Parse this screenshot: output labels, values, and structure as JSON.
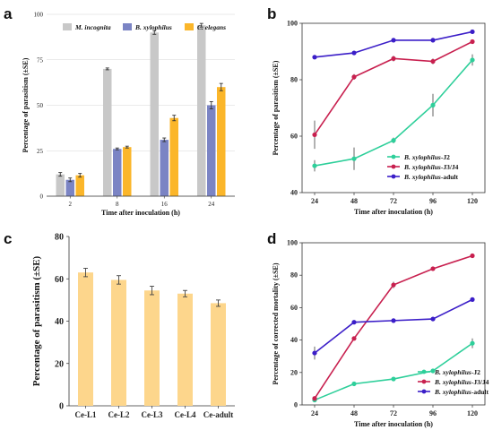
{
  "chart_data": [
    {
      "panel": "a",
      "type": "bar",
      "xlabel": "Time after inoculation (h)",
      "ylabel": "Percentage of parasitism (±SE)",
      "categories": [
        "2",
        "8",
        "16",
        "24"
      ],
      "ylim": [
        0,
        100
      ],
      "yticks": [
        "0",
        "25",
        "50",
        "75",
        "100"
      ],
      "grid": true,
      "legend_position": "top",
      "series": [
        {
          "name": "M. incognita",
          "color": "#c8c8c8",
          "values": [
            12,
            70,
            90,
            94
          ],
          "errors": [
            1,
            0.5,
            1,
            1
          ]
        },
        {
          "name": "B. xylophilus",
          "color": "#7b84c4",
          "values": [
            9,
            26,
            31,
            50
          ],
          "errors": [
            1,
            0.5,
            1,
            2
          ]
        },
        {
          "name": "C. elegans",
          "color": "#fbb62a",
          "values": [
            11.5,
            27,
            43,
            60
          ],
          "errors": [
            1,
            0.5,
            1.5,
            2
          ]
        }
      ]
    },
    {
      "panel": "b",
      "type": "line",
      "xlabel": "Time after inoculation (h)",
      "ylabel": "Percentage of parasitism (±SE)",
      "x": [
        "24",
        "48",
        "72",
        "96",
        "120"
      ],
      "ylim": [
        40,
        100
      ],
      "yticks": [
        "40",
        "60",
        "80",
        "100"
      ],
      "legend_position": "bottom-right",
      "series": [
        {
          "name": "B. xylophilus",
          "suffix": "-J2",
          "color": "#2ecf9a",
          "values": [
            49.5,
            52,
            58.5,
            71,
            87
          ],
          "errors": [
            2,
            4,
            1,
            4,
            2
          ]
        },
        {
          "name": "B. xylophilus",
          "suffix": "-J3/J4",
          "color": "#c8204f",
          "values": [
            60.5,
            81,
            87.5,
            86.5,
            93.5
          ],
          "errors": [
            5,
            1,
            1,
            1,
            0.5
          ]
        },
        {
          "name": "B. xylophilus",
          "suffix": "-adult",
          "color": "#3b1ec8",
          "values": [
            88,
            89.5,
            94,
            94,
            97
          ],
          "errors": [
            0.5,
            0.5,
            0.5,
            0.5,
            0.5
          ]
        }
      ]
    },
    {
      "panel": "c",
      "type": "bar",
      "xlabel": "",
      "ylabel": "Percentage of parasitism (±SE)",
      "categories": [
        "Ce-L1",
        "Ce-L2",
        "Ce-L3",
        "Ce-L4",
        "Ce-adult"
      ],
      "ylim": [
        0,
        80
      ],
      "yticks": [
        "0",
        "20",
        "40",
        "60",
        "80"
      ],
      "color": "#fdd68c",
      "values": [
        63,
        59.5,
        54.5,
        53,
        48.5
      ],
      "errors": [
        2,
        2,
        2,
        1.5,
        1.5
      ]
    },
    {
      "panel": "d",
      "type": "line",
      "xlabel": "Time after inoculation (h)",
      "ylabel": "Percentage of corrected mortality (±SE)",
      "x": [
        "24",
        "48",
        "72",
        "96",
        "120"
      ],
      "ylim": [
        0,
        100
      ],
      "yticks": [
        "0",
        "20",
        "40",
        "60",
        "80",
        "100"
      ],
      "legend_position": "bottom-right",
      "series": [
        {
          "name": "B. xylophilus",
          "suffix": "-J2",
          "color": "#2ecf9a",
          "values": [
            3,
            13,
            16,
            21,
            38
          ],
          "errors": [
            1,
            1,
            1,
            1,
            3
          ]
        },
        {
          "name": "B. xylophilus",
          "suffix": "-J3/J4",
          "color": "#c8204f",
          "values": [
            4,
            41,
            74,
            84,
            92
          ],
          "errors": [
            1,
            1,
            2,
            1,
            1
          ]
        },
        {
          "name": "B. xylophilus",
          "suffix": "-adult",
          "color": "#3b1ec8",
          "values": [
            32,
            51,
            52,
            53,
            65
          ],
          "errors": [
            4,
            1,
            1,
            1,
            1
          ]
        }
      ]
    }
  ]
}
